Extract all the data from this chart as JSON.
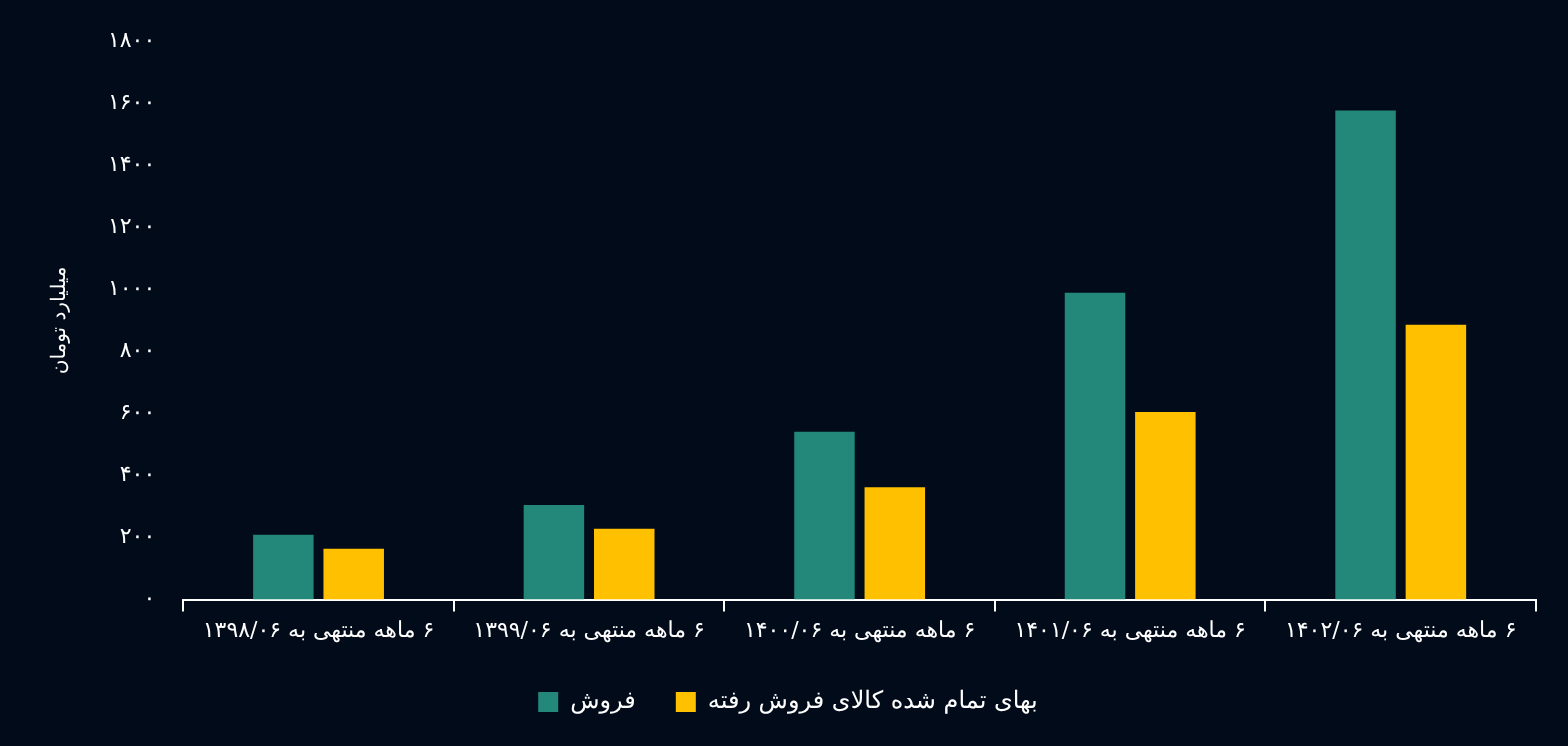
{
  "chart_data": {
    "type": "bar",
    "ylabel": "میلیارد تومان",
    "categories": [
      "۶ ماهه منتهی به ۱۳۹۸/۰۶",
      "۶ ماهه منتهی به ۱۳۹۹/۰۶",
      "۶ ماهه منتهی به ۱۴۰۰/۰۶",
      "۶ ماهه منتهی به ۱۴۰۱/۰۶",
      "۶ ماهه منتهی به ۱۴۰۲/۰۶"
    ],
    "series": [
      {
        "name": "فروش",
        "color": "#23877a",
        "values": [
          209,
          305,
          541,
          989,
          1577
        ]
      },
      {
        "name": "بهای تمام شده کالای فروش رفته",
        "color": "#ffc000",
        "values": [
          164,
          228,
          362,
          605,
          886
        ]
      }
    ],
    "ylim": [
      0,
      1800
    ],
    "yticks": [
      {
        "value": 0,
        "label": "۰"
      },
      {
        "value": 200,
        "label": "۲۰۰"
      },
      {
        "value": 400,
        "label": "۴۰۰"
      },
      {
        "value": 600,
        "label": "۶۰۰"
      },
      {
        "value": 800,
        "label": "۸۰۰"
      },
      {
        "value": 1000,
        "label": "۱۰۰۰"
      },
      {
        "value": 1200,
        "label": "۱۲۰۰"
      },
      {
        "value": 1400,
        "label": "۱۴۰۰"
      },
      {
        "value": 1600,
        "label": "۱۶۰۰"
      },
      {
        "value": 1800,
        "label": "۱۸۰۰"
      }
    ],
    "grid": false,
    "legend": "bottom"
  }
}
